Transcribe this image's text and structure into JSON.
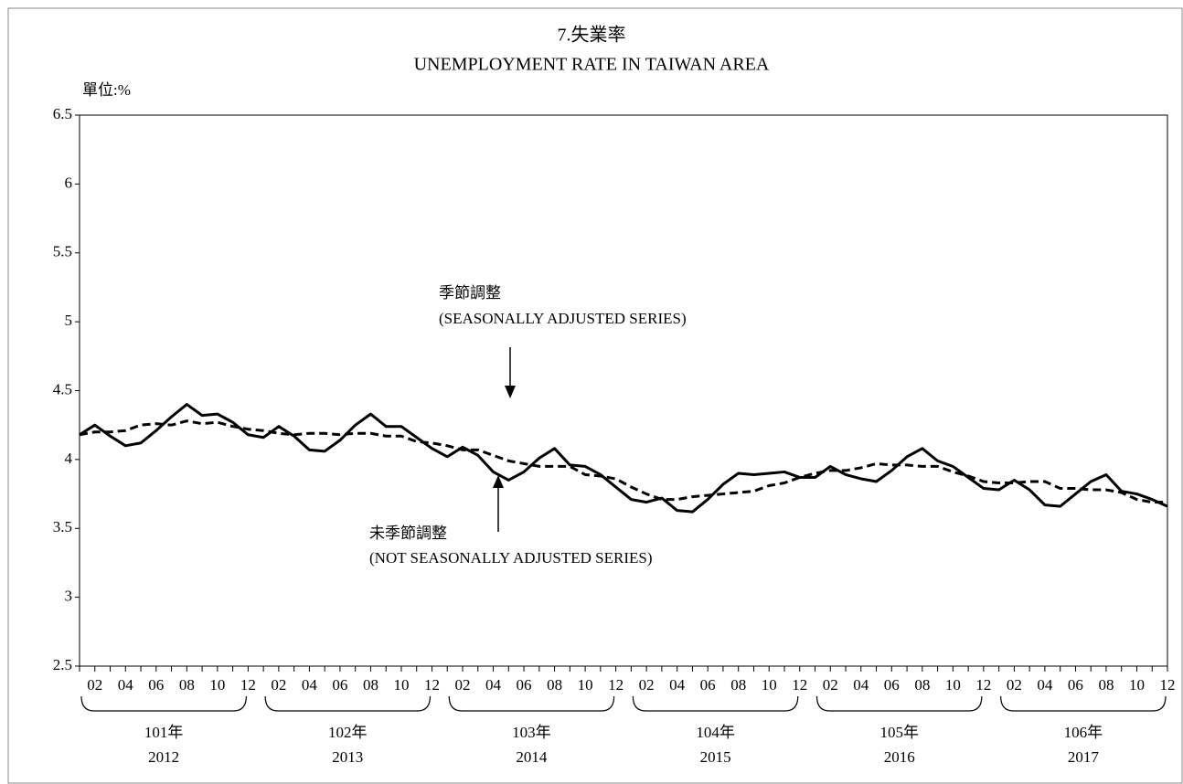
{
  "chart_data": {
    "type": "line",
    "title": "7.失業率",
    "subtitle": "UNEMPLOYMENT RATE IN TAIWAN AREA",
    "unit_label": "單位:%",
    "categories": [
      null,
      "02",
      null,
      "04",
      null,
      "06",
      null,
      "08",
      null,
      "10",
      null,
      "12",
      null,
      "02",
      null,
      "04",
      null,
      "06",
      null,
      "08",
      null,
      "10",
      null,
      "12",
      null,
      "02",
      null,
      "04",
      null,
      "06",
      null,
      "08",
      null,
      "10",
      null,
      "12",
      null,
      "02",
      null,
      "04",
      null,
      "06",
      null,
      "08",
      null,
      "10",
      null,
      "12",
      null,
      "02",
      null,
      "04",
      null,
      "06",
      null,
      "08",
      null,
      "10",
      null,
      "12",
      null,
      "02",
      null,
      "04",
      null,
      "06",
      null,
      "08",
      null,
      "10",
      null,
      "12"
    ],
    "year_groups": [
      {
        "label_zh": "101年",
        "label_en": "2012"
      },
      {
        "label_zh": "102年",
        "label_en": "2013"
      },
      {
        "label_zh": "103年",
        "label_en": "2014"
      },
      {
        "label_zh": "104年",
        "label_en": "2015"
      },
      {
        "label_zh": "105年",
        "label_en": "2016"
      },
      {
        "label_zh": "106年",
        "label_en": "2017"
      }
    ],
    "series": [
      {
        "name": "未季節調整",
        "name_en": "(NOT SEASONALLY ADJUSTED SERIES)",
        "color": "#000000",
        "dashed": false,
        "values": [
          4.18,
          4.25,
          4.17,
          4.1,
          4.12,
          4.21,
          4.31,
          4.4,
          4.32,
          4.33,
          4.27,
          4.18,
          4.16,
          4.24,
          4.17,
          4.07,
          4.06,
          4.14,
          4.25,
          4.33,
          4.24,
          4.24,
          4.16,
          4.08,
          4.02,
          4.09,
          4.03,
          3.91,
          3.85,
          3.91,
          4.01,
          4.08,
          3.96,
          3.95,
          3.89,
          3.8,
          3.71,
          3.69,
          3.72,
          3.63,
          3.62,
          3.71,
          3.82,
          3.9,
          3.89,
          3.9,
          3.91,
          3.87,
          3.87,
          3.95,
          3.89,
          3.86,
          3.84,
          3.92,
          4.02,
          4.08,
          3.99,
          3.95,
          3.87,
          3.79,
          3.78,
          3.85,
          3.78,
          3.67,
          3.66,
          3.75,
          3.84,
          3.89,
          3.77,
          3.75,
          3.71,
          3.66
        ]
      },
      {
        "name": "季節調整",
        "name_en": "(SEASONALLY ADJUSTED SERIES)",
        "color": "#000000",
        "dashed": true,
        "values": [
          4.18,
          4.2,
          4.2,
          4.21,
          4.25,
          4.26,
          4.25,
          4.28,
          4.26,
          4.27,
          4.24,
          4.22,
          4.21,
          4.19,
          4.18,
          4.19,
          4.19,
          4.18,
          4.19,
          4.19,
          4.17,
          4.17,
          4.13,
          4.12,
          4.1,
          4.07,
          4.07,
          4.03,
          3.99,
          3.97,
          3.95,
          3.95,
          3.95,
          3.89,
          3.88,
          3.86,
          3.8,
          3.75,
          3.71,
          3.71,
          3.73,
          3.74,
          3.75,
          3.76,
          3.77,
          3.81,
          3.83,
          3.87,
          3.9,
          3.92,
          3.92,
          3.94,
          3.97,
          3.96,
          3.96,
          3.95,
          3.95,
          3.91,
          3.88,
          3.84,
          3.83,
          3.83,
          3.84,
          3.84,
          3.79,
          3.79,
          3.78,
          3.78,
          3.76,
          3.71,
          3.69,
          3.69
        ]
      }
    ],
    "ylim": [
      2.5,
      6.5
    ],
    "yticks": [
      2.5,
      3,
      3.5,
      4,
      4.5,
      5,
      5.5,
      6,
      6.5
    ],
    "grid": false
  }
}
